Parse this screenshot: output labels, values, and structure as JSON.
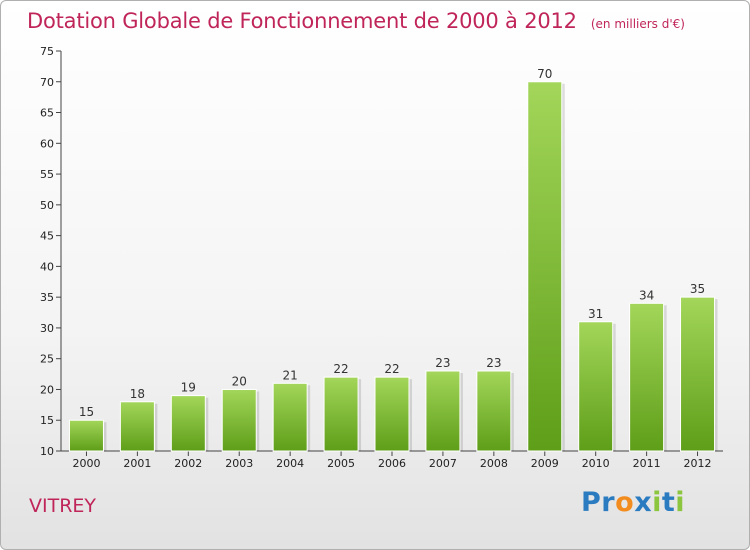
{
  "chart_data": {
    "type": "bar",
    "title": "Dotation Globale de Fonctionnement de 2000 à 2012",
    "unit": "(en milliers d'€)",
    "categories": [
      "2000",
      "2001",
      "2002",
      "2003",
      "2004",
      "2005",
      "2006",
      "2007",
      "2008",
      "2009",
      "2010",
      "2011",
      "2012"
    ],
    "values": [
      15,
      18,
      19,
      20,
      21,
      22,
      22,
      23,
      23,
      70,
      31,
      34,
      35
    ],
    "ylim": [
      10,
      75
    ],
    "yticks": [
      10,
      15,
      20,
      25,
      30,
      35,
      40,
      45,
      50,
      55,
      60,
      65,
      70,
      75
    ],
    "xlabel": "",
    "ylabel": "",
    "grid": false,
    "bar_color": "#8cc63f",
    "label": "VITREY"
  },
  "logo": {
    "text": "Proxiti",
    "letters": [
      "P",
      "r",
      "o",
      "x",
      "i",
      "t",
      "i"
    ]
  },
  "colors": {
    "title": "#c0255a",
    "bar_top": "#a3d65a",
    "bar_bottom": "#5e9e18",
    "logo_letters": [
      "#2b7bc0",
      "#2b7bc0",
      "#f28c1e",
      "#2b7bc0",
      "#8cc63f",
      "#2b7bc0",
      "#8cc63f"
    ]
  }
}
